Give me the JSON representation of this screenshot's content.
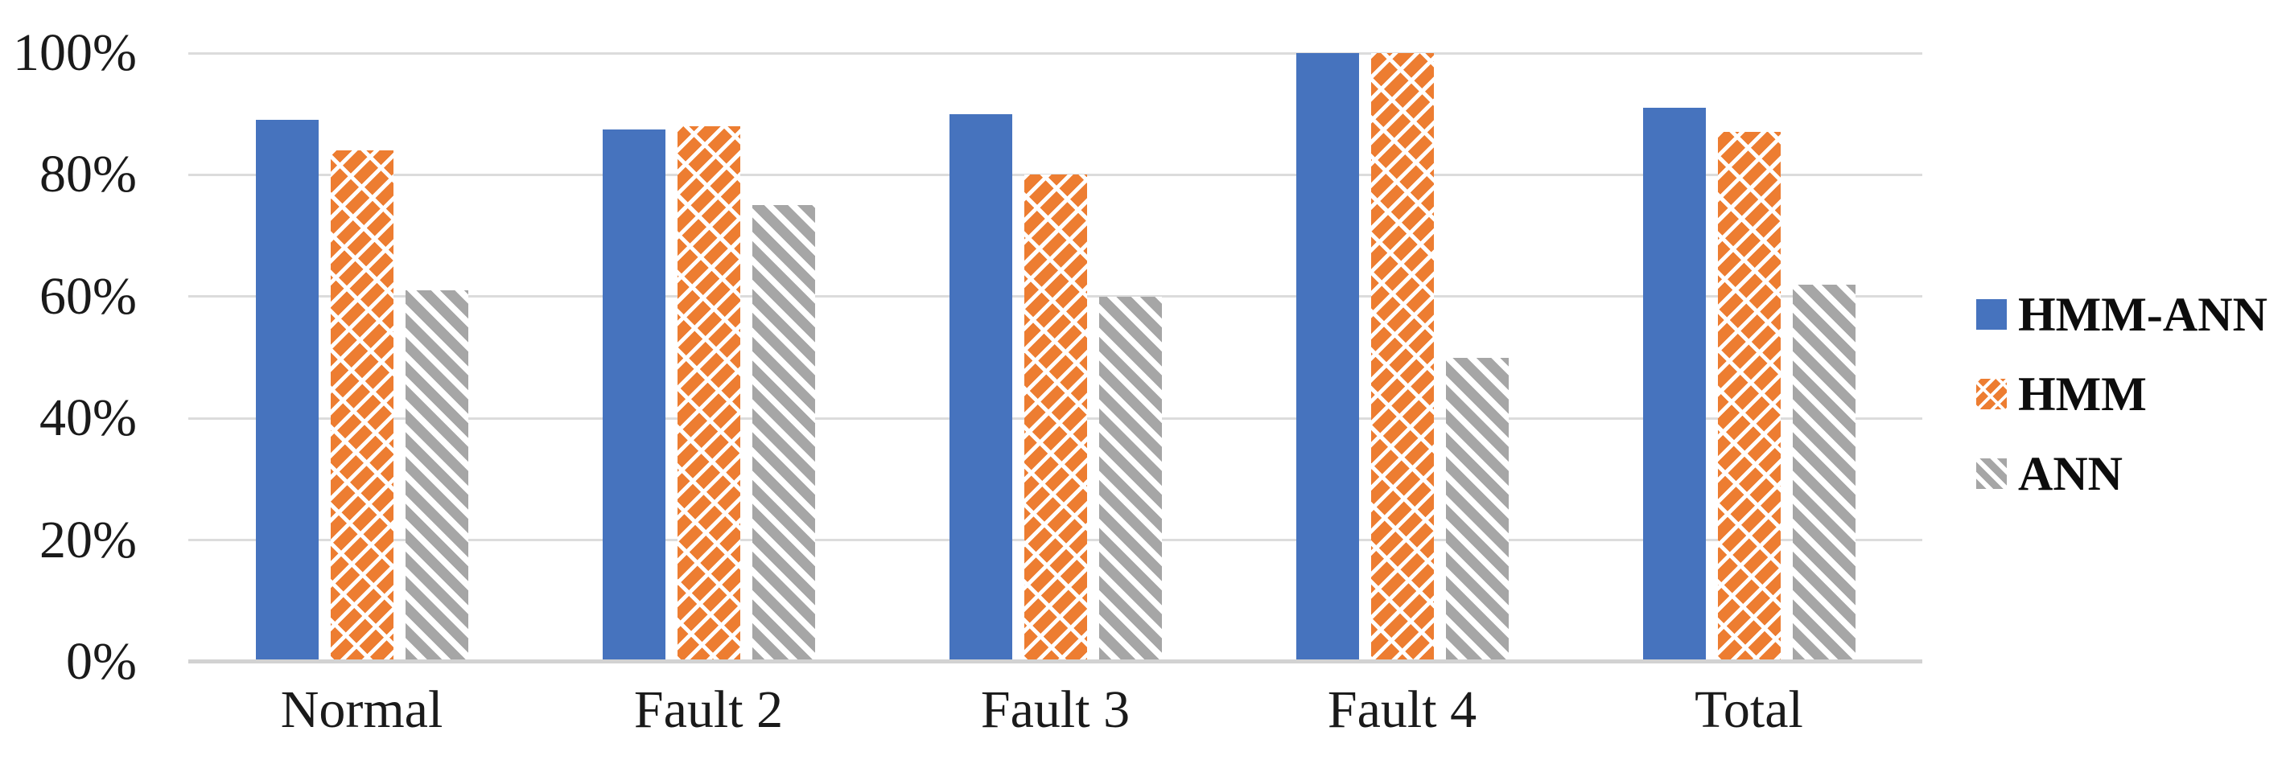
{
  "chart_data": {
    "type": "bar",
    "title": "",
    "categories": [
      "Normal",
      "Fault 2",
      "Fault 3",
      "Fault 4",
      "Total"
    ],
    "series": [
      {
        "key": "hmm-ann",
        "name": "HMM-ANN",
        "color": "#4673BE",
        "pattern": "solid",
        "values": [
          89,
          87.5,
          90,
          100,
          91
        ]
      },
      {
        "key": "hmm",
        "name": "HMM",
        "color": "#ED7D31",
        "pattern": "white-diagonal-lattice",
        "values": [
          84,
          88,
          80,
          100,
          87
        ]
      },
      {
        "key": "ann",
        "name": "ANN",
        "color": "#A6A6A6",
        "pattern": "white-diagonal-stripes",
        "values": [
          61,
          75,
          60,
          50,
          62
        ]
      }
    ],
    "y_axis": {
      "range": [
        0,
        100
      ],
      "ticks": [
        {
          "label": "0%",
          "value": 0
        },
        {
          "label": "20%",
          "value": 20
        },
        {
          "label": "40%",
          "value": 40
        },
        {
          "label": "60%",
          "value": 60
        },
        {
          "label": "80%",
          "value": 80
        },
        {
          "label": "100%",
          "value": 100
        }
      ]
    },
    "xlabel": "",
    "ylabel": "",
    "grid": true,
    "legend_position": "right",
    "colors": {
      "gridline": "#DCDCDC",
      "axis_line": "#D2D2D2",
      "text": "#1a1a1a",
      "background": "#ffffff"
    }
  }
}
